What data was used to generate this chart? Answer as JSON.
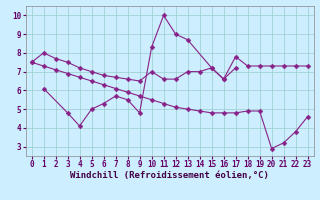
{
  "line1_x": [
    0,
    1,
    2,
    3,
    4,
    5,
    6,
    7,
    8,
    9,
    10,
    11,
    12,
    13,
    14,
    15,
    16,
    17,
    18,
    19,
    20,
    21,
    22,
    23
  ],
  "line1_y": [
    7.5,
    8.0,
    7.7,
    7.5,
    7.2,
    7.0,
    6.8,
    6.7,
    6.6,
    6.5,
    7.0,
    6.6,
    6.6,
    7.0,
    7.0,
    7.2,
    6.6,
    7.8,
    7.3,
    7.3,
    7.3,
    7.3,
    7.3,
    7.3
  ],
  "line2_x": [
    1,
    3,
    4,
    5,
    6,
    7,
    8,
    9,
    10,
    11,
    12,
    13,
    15,
    16,
    17
  ],
  "line2_y": [
    6.1,
    4.8,
    4.1,
    5.0,
    5.3,
    5.7,
    5.5,
    4.8,
    8.3,
    10.0,
    9.0,
    8.7,
    7.2,
    6.6,
    7.2
  ],
  "line3_x": [
    0,
    1,
    2,
    3,
    4,
    5,
    6,
    7,
    8,
    9,
    10,
    11,
    12,
    13,
    14,
    15,
    16,
    17,
    18,
    19,
    20,
    21,
    22,
    23
  ],
  "line3_y": [
    7.5,
    7.3,
    7.1,
    6.9,
    6.7,
    6.5,
    6.3,
    6.1,
    5.9,
    5.7,
    5.5,
    5.3,
    5.1,
    5.0,
    4.9,
    4.8,
    4.8,
    4.8,
    4.9,
    4.9,
    2.9,
    3.2,
    3.8,
    4.6
  ],
  "line_color": "#882288",
  "marker": "D",
  "markersize": 2.5,
  "linewidth": 0.8,
  "bg_color": "#cceeff",
  "grid_color": "#99cccc",
  "xlabel": "Windchill (Refroidissement éolien,°C)",
  "xlim": [
    -0.5,
    23.5
  ],
  "ylim": [
    2.5,
    10.5
  ],
  "yticks": [
    3,
    4,
    5,
    6,
    7,
    8,
    9,
    10
  ],
  "xticks": [
    0,
    1,
    2,
    3,
    4,
    5,
    6,
    7,
    8,
    9,
    10,
    11,
    12,
    13,
    14,
    15,
    16,
    17,
    18,
    19,
    20,
    21,
    22,
    23
  ],
  "tick_fontsize": 5.5,
  "xlabel_fontsize": 6.5
}
